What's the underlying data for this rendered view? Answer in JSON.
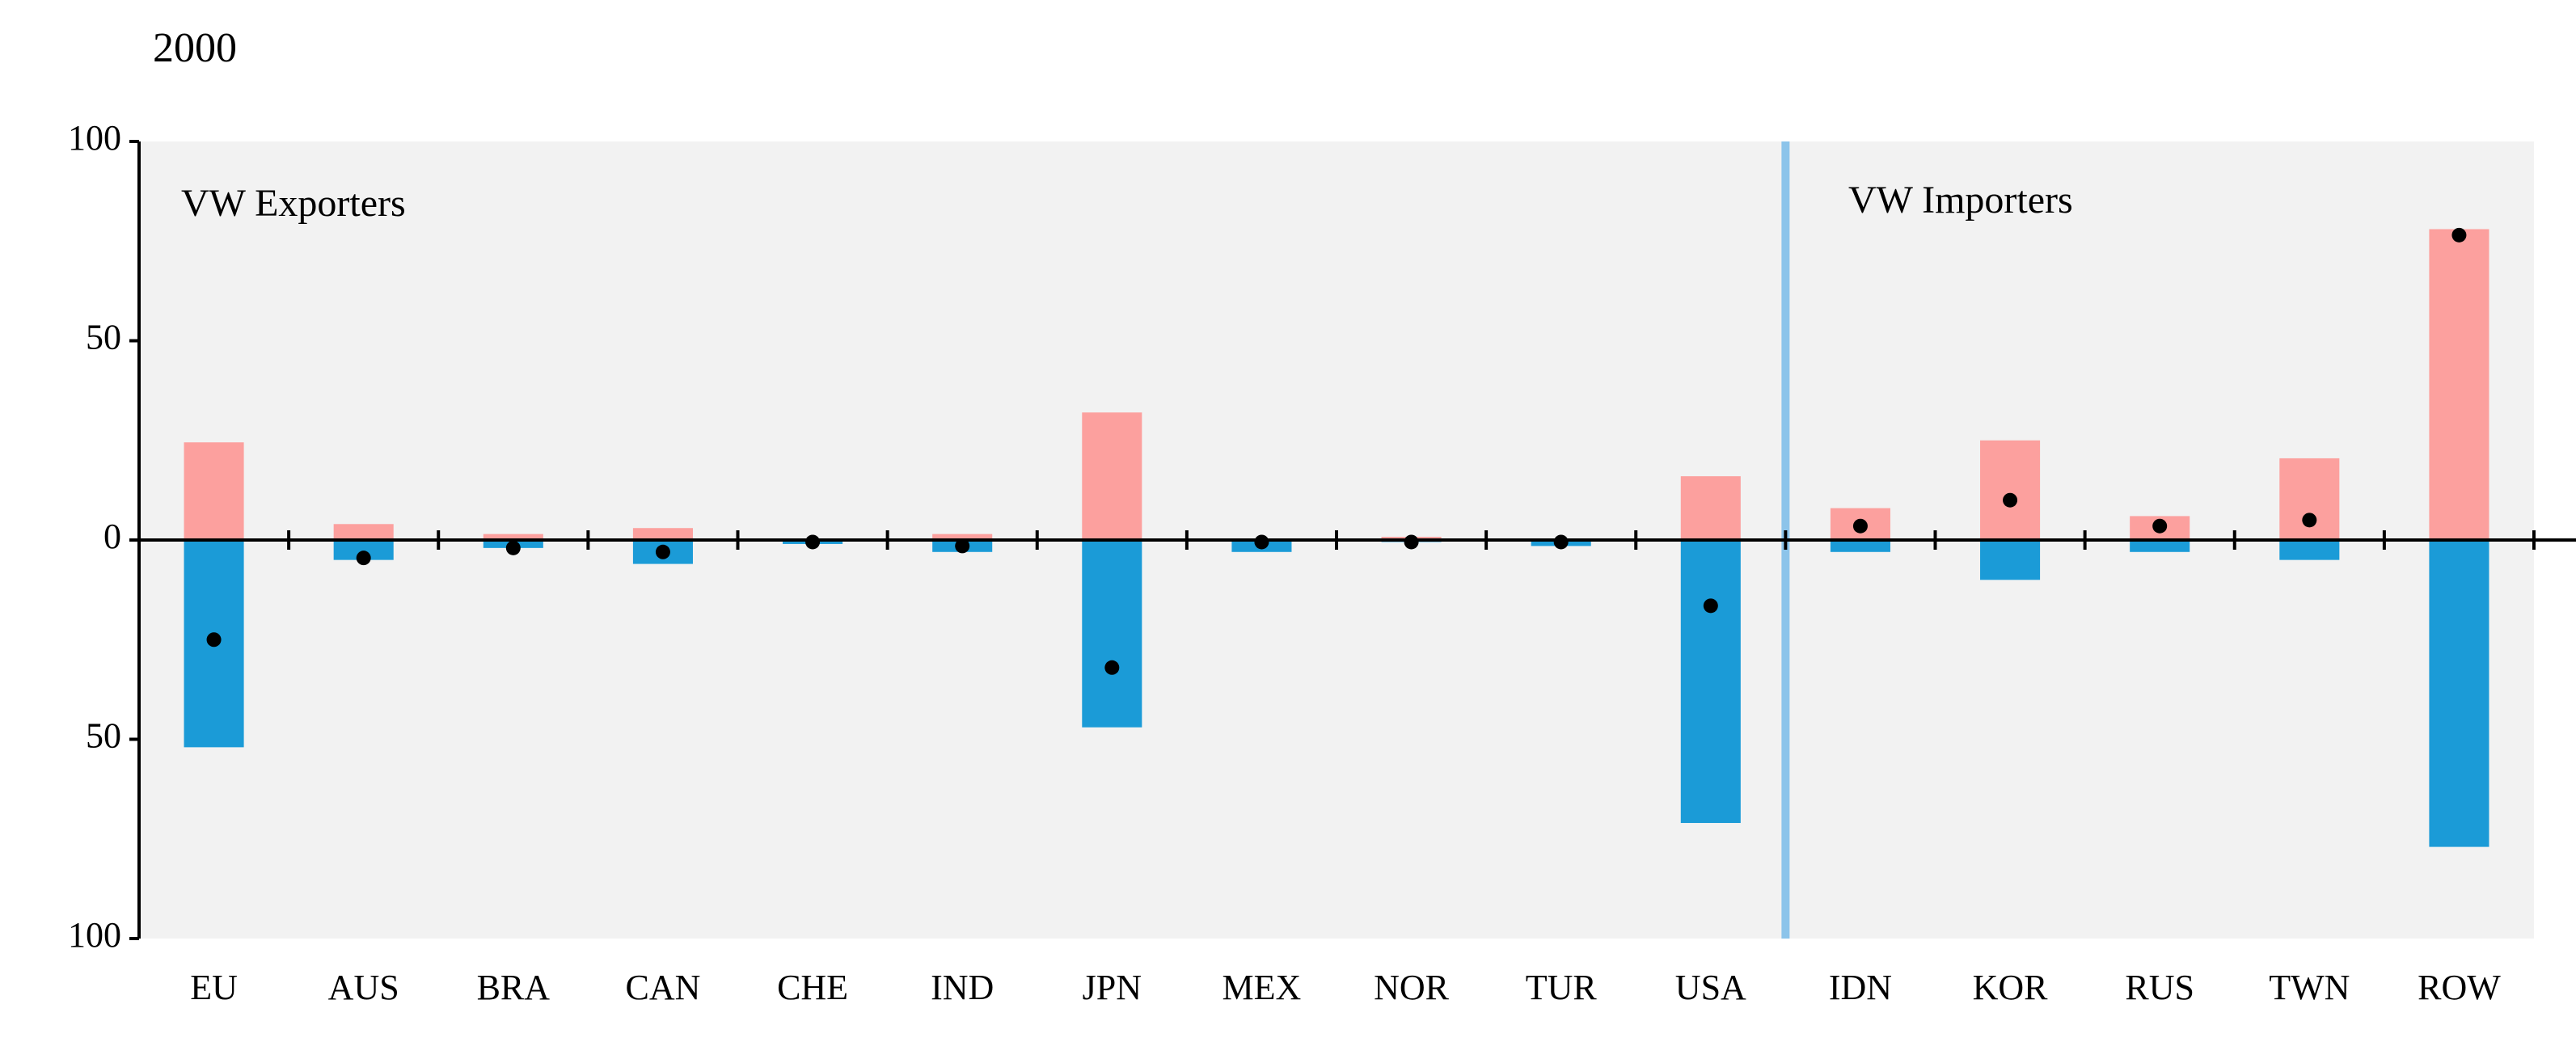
{
  "chart_data": {
    "type": "bar",
    "title": "2000",
    "annotations": [
      "VW Exporters",
      "VW Importers"
    ],
    "categories": [
      "EU",
      "AUS",
      "BRA",
      "CAN",
      "CHE",
      "IND",
      "JPN",
      "MEX",
      "NOR",
      "TUR",
      "USA",
      "IDN",
      "KOR",
      "RUS",
      "TWN",
      "ROW"
    ],
    "series": [
      {
        "color": "#fca09e",
        "values": [
          24.5,
          4,
          1.5,
          3,
          0.3,
          1.5,
          32,
          0.2,
          0.8,
          0.2,
          16,
          8,
          25,
          6,
          20.5,
          78
        ]
      },
      {
        "color": "#1b9bd7",
        "values": [
          -52,
          -5,
          -2,
          -6,
          -1,
          -3,
          -47,
          -3,
          -0.5,
          -1.5,
          -71,
          -3,
          -10,
          -3,
          -5,
          -77
        ]
      },
      {
        "type": "dot",
        "color": "#000000",
        "values": [
          -25,
          -4.5,
          -2,
          -3,
          -0.5,
          -1.5,
          -32,
          -0.5,
          -0.5,
          -0.5,
          -16.5,
          3.5,
          10,
          3.5,
          5,
          76.5
        ]
      }
    ],
    "ylim": [
      -100,
      100
    ],
    "yticks": [
      {
        "value": -100,
        "label": "100"
      },
      {
        "value": -50,
        "label": "50"
      },
      0,
      50,
      100
    ],
    "grid": false
  }
}
